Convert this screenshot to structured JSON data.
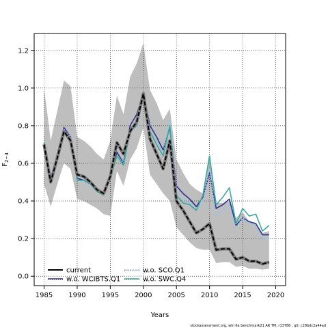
{
  "chart_data": {
    "type": "line",
    "xlabel": "Years",
    "ylabel": "F",
    "ylabel_sub": "2−4",
    "xlim": [
      1983.5,
      2021.5
    ],
    "ylim": [
      -0.05,
      1.29
    ],
    "xticks": [
      1985,
      1990,
      1995,
      2000,
      2005,
      2010,
      2015,
      2020
    ],
    "yticks": [
      0.0,
      0.2,
      0.4,
      0.6,
      0.8,
      1.0,
      1.2
    ],
    "ytick_labels": [
      "0.0",
      "0.2",
      "0.4",
      "0.6",
      "0.8",
      "1.0",
      "1.2"
    ],
    "grid": true,
    "legend_position": "bottom-left",
    "x": [
      1985,
      1986,
      1987,
      1988,
      1989,
      1990,
      1991,
      1992,
      1993,
      1994,
      1995,
      1996,
      1997,
      1998,
      1999,
      2000,
      2001,
      2002,
      2003,
      2004,
      2005,
      2006,
      2007,
      2008,
      2009,
      2010,
      2011,
      2012,
      2013,
      2014,
      2015,
      2016,
      2017,
      2018,
      2019
    ],
    "confidence_band": {
      "color": "#bebebe",
      "upper": [
        1.0,
        0.72,
        0.88,
        1.04,
        1.01,
        0.74,
        0.72,
        0.69,
        0.65,
        0.62,
        0.72,
        0.96,
        0.86,
        1.06,
        1.13,
        1.24,
        0.99,
        0.92,
        0.83,
        0.89,
        0.62,
        0.55,
        0.49,
        0.46,
        0.44,
        0.63,
        0.39,
        0.39,
        0.4,
        0.31,
        0.34,
        0.29,
        0.28,
        0.23,
        0.24
      ],
      "lower": [
        0.49,
        0.37,
        0.49,
        0.6,
        0.57,
        0.41,
        0.4,
        0.38,
        0.36,
        0.33,
        0.32,
        0.56,
        0.48,
        0.62,
        0.68,
        0.79,
        0.54,
        0.49,
        0.44,
        0.4,
        0.26,
        0.22,
        0.18,
        0.15,
        0.14,
        0.14,
        0.07,
        0.075,
        0.075,
        0.05,
        0.055,
        0.04,
        0.04,
        0.035,
        0.04
      ]
    },
    "series": [
      {
        "name": "current",
        "color": "#000000",
        "dash": "dashed-bold",
        "values": [
          0.7,
          0.5,
          0.63,
          0.77,
          0.72,
          0.54,
          0.53,
          0.5,
          0.46,
          0.44,
          0.53,
          0.71,
          0.65,
          0.77,
          0.82,
          0.97,
          0.73,
          0.65,
          0.57,
          0.72,
          0.4,
          0.35,
          0.29,
          0.23,
          0.25,
          0.28,
          0.14,
          0.145,
          0.145,
          0.09,
          0.1,
          0.08,
          0.08,
          0.065,
          0.075
        ]
      },
      {
        "name": "w.o. WCIBTS.Q1",
        "color": "#2f2f8a",
        "dash": "solid",
        "values": [
          0.71,
          0.52,
          0.65,
          0.79,
          0.74,
          0.52,
          0.51,
          0.49,
          0.46,
          0.44,
          0.52,
          0.66,
          0.6,
          0.8,
          0.86,
          0.97,
          0.8,
          0.74,
          0.67,
          0.79,
          0.48,
          0.44,
          0.41,
          0.37,
          0.42,
          0.55,
          0.36,
          0.38,
          0.41,
          0.27,
          0.31,
          0.29,
          0.28,
          0.22,
          0.22
        ]
      },
      {
        "name": "w.o. SCO.Q1",
        "color": "#8ec8f0",
        "dash": "dotted",
        "values": [
          0.71,
          0.51,
          0.65,
          0.78,
          0.74,
          0.51,
          0.5,
          0.48,
          0.45,
          0.43,
          0.53,
          0.64,
          0.6,
          0.76,
          0.81,
          0.99,
          0.78,
          0.72,
          0.65,
          0.84,
          0.46,
          0.42,
          0.39,
          0.35,
          0.4,
          0.57,
          0.32,
          0.35,
          0.38,
          0.26,
          0.31,
          0.28,
          0.27,
          0.2,
          0.2
        ]
      },
      {
        "name": "w.o. SWC.Q4",
        "color": "#3aa89e",
        "dash": "solid",
        "values": [
          0.71,
          0.51,
          0.65,
          0.77,
          0.73,
          0.51,
          0.51,
          0.49,
          0.45,
          0.43,
          0.52,
          0.64,
          0.59,
          0.77,
          0.8,
          0.96,
          0.77,
          0.7,
          0.64,
          0.8,
          0.43,
          0.39,
          0.38,
          0.35,
          0.43,
          0.64,
          0.38,
          0.42,
          0.47,
          0.28,
          0.36,
          0.32,
          0.33,
          0.24,
          0.27
        ]
      }
    ]
  },
  "footer": "stockassessment.org, whi 6a benchmark21 AR TM, r13786 , git: c28bdc2a44ad"
}
